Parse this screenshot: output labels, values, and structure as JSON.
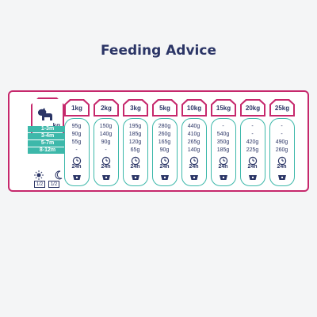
{
  "title": "Feeding Advice",
  "unit_label": "kg",
  "age_groups": [
    "1-3m",
    "3-4m",
    "5-7m",
    "8-12m"
  ],
  "meals": {
    "day_fraction": "1/2",
    "night_fraction": "1/2"
  },
  "colors": {
    "accent_pink": "#c6286c",
    "accent_teal": "#3db8aa",
    "text_navy": "#2b3566"
  },
  "weights": [
    {
      "label": "1kg",
      "values": [
        "95g",
        "90g",
        "55g",
        "-"
      ],
      "duration": "24h"
    },
    {
      "label": "2kg",
      "values": [
        "150g",
        "140g",
        "90g",
        "-"
      ],
      "duration": "24h"
    },
    {
      "label": "3kg",
      "values": [
        "195g",
        "185g",
        "120g",
        "65g"
      ],
      "duration": "24h"
    },
    {
      "label": "5kg",
      "values": [
        "280g",
        "260g",
        "165g",
        "90g"
      ],
      "duration": "24h"
    },
    {
      "label": "10kg",
      "values": [
        "440g",
        "410g",
        "265g",
        "140g"
      ],
      "duration": "24h"
    },
    {
      "label": "15kg",
      "values": [
        "-",
        "540g",
        "350g",
        "185g"
      ],
      "duration": "24h"
    },
    {
      "label": "20kg",
      "values": [
        "-",
        "-",
        "420g",
        "225g"
      ],
      "duration": "24h"
    },
    {
      "label": "25kg",
      "values": [
        "-",
        "-",
        "490g",
        "260g"
      ],
      "duration": "24h"
    }
  ]
}
